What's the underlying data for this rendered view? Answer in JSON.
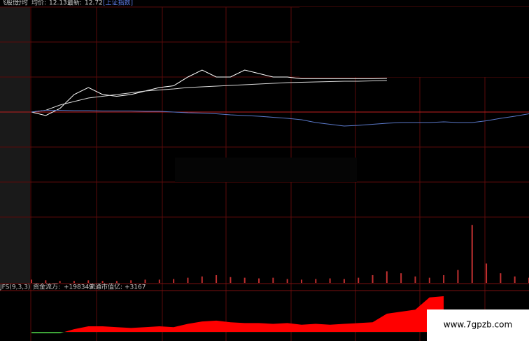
{
  "header": {
    "name": "飞股份",
    "mode": "分时",
    "avg_label": "均价:",
    "avg": 12.13,
    "last_label": "最新:",
    "last": 12.72,
    "index_name": "[上证指数]"
  },
  "indicator": {
    "name": "JFS(9,3,3)",
    "flow_label": "资金流万:",
    "flow": "+198349",
    "cap_label": "流通市值亿:",
    "cap": "+3167"
  },
  "watermark": "www.7gpzb.com",
  "chart_data": [
    {
      "type": "line",
      "ylim": [
        -3,
        3
      ],
      "yticks": [
        -3,
        -2,
        -1,
        0,
        1,
        2,
        3
      ],
      "series": [
        {
          "name": "price",
          "color": "#ffffff",
          "values": [
            0,
            -0.1,
            0.1,
            0.5,
            0.7,
            0.5,
            0.45,
            0.5,
            0.6,
            0.7,
            0.75,
            1.0,
            1.2,
            1.0,
            1.0,
            1.2,
            1.1,
            1.0,
            1.0,
            0.95,
            0.95,
            0.95,
            0.95,
            0.95,
            0.95,
            0.96,
            null,
            null,
            null,
            null,
            null,
            null,
            null,
            null,
            null,
            null
          ]
        },
        {
          "name": "avg",
          "color": "#d8d8d8",
          "values": [
            0,
            0.05,
            0.2,
            0.3,
            0.4,
            0.45,
            0.5,
            0.55,
            0.6,
            0.63,
            0.66,
            0.7,
            0.72,
            0.74,
            0.76,
            0.78,
            0.8,
            0.82,
            0.84,
            0.85,
            0.86,
            0.87,
            0.88,
            0.88,
            0.89,
            0.9,
            null,
            null,
            null,
            null,
            null,
            null,
            null,
            null,
            null,
            null
          ]
        },
        {
          "name": "index",
          "color": "#5a78c8",
          "values": [
            0,
            0.05,
            0.05,
            0.04,
            0.04,
            0.03,
            0.03,
            0.03,
            0.02,
            0.02,
            0,
            -0.02,
            -0.03,
            -0.05,
            -0.08,
            -0.1,
            -0.12,
            -0.15,
            -0.18,
            -0.22,
            -0.3,
            -0.35,
            -0.4,
            -0.38,
            -0.35,
            -0.32,
            -0.3,
            -0.3,
            -0.3,
            -0.28,
            -0.3,
            -0.3,
            -0.25,
            -0.18,
            -0.12,
            -0.05
          ]
        }
      ]
    },
    {
      "type": "bar",
      "ylim": [
        0,
        100
      ],
      "color": "#c03030",
      "values": [
        5,
        4,
        3,
        3,
        4,
        3,
        3,
        4,
        5,
        5,
        6,
        8,
        10,
        12,
        9,
        8,
        7,
        8,
        6,
        5,
        6,
        7,
        6,
        8,
        12,
        18,
        15,
        10,
        8,
        12,
        20,
        90,
        30,
        15,
        10,
        8
      ]
    },
    {
      "type": "area",
      "ylim": [
        -10,
        100
      ],
      "positive_color": "#ff0000",
      "negative_color": "#44cc44",
      "values": [
        -3,
        -3,
        -3,
        7,
        14,
        14,
        12,
        10,
        12,
        14,
        12,
        20,
        26,
        28,
        24,
        22,
        22,
        20,
        22,
        18,
        20,
        18,
        20,
        22,
        24,
        45,
        50,
        55,
        85,
        88,
        null,
        null,
        null,
        null,
        null,
        null
      ]
    }
  ]
}
